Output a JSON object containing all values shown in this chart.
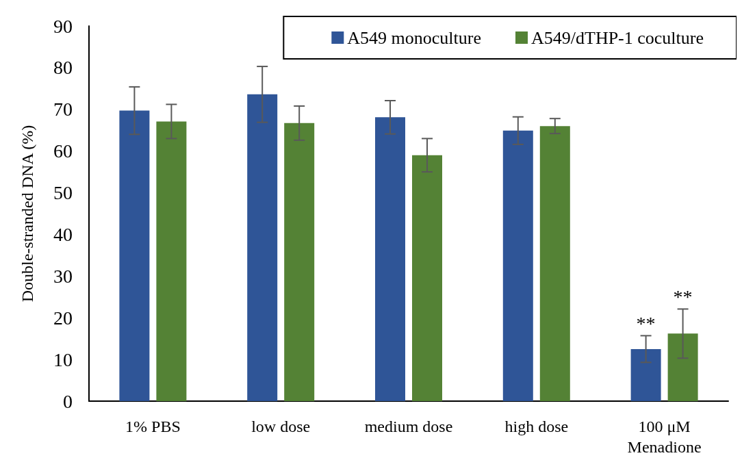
{
  "chart_data": {
    "type": "bar",
    "ylabel": "Double-stranded DNA (%)",
    "categories": [
      "1% PBS",
      "low dose",
      "medium dose",
      "high dose",
      "100 μM\nMenadione"
    ],
    "series": [
      {
        "name": "A549 monoculture",
        "color": "#2f5597",
        "values": [
          69.7,
          73.6,
          68.1,
          64.9,
          12.5
        ],
        "errors": [
          5.7,
          6.7,
          4.0,
          3.3,
          3.2
        ]
      },
      {
        "name": "A549/dTHP-1 coculture",
        "color": "#548235",
        "values": [
          67.1,
          66.7,
          59.0,
          66.0,
          16.2
        ],
        "errors": [
          4.1,
          4.1,
          4.0,
          1.8,
          5.9
        ]
      }
    ],
    "ylim": [
      0,
      90
    ],
    "yticks": [
      0,
      10,
      20,
      30,
      40,
      50,
      60,
      70,
      80,
      90
    ],
    "grid": false,
    "legend": "top right",
    "annotations": [
      "**",
      "**"
    ]
  }
}
